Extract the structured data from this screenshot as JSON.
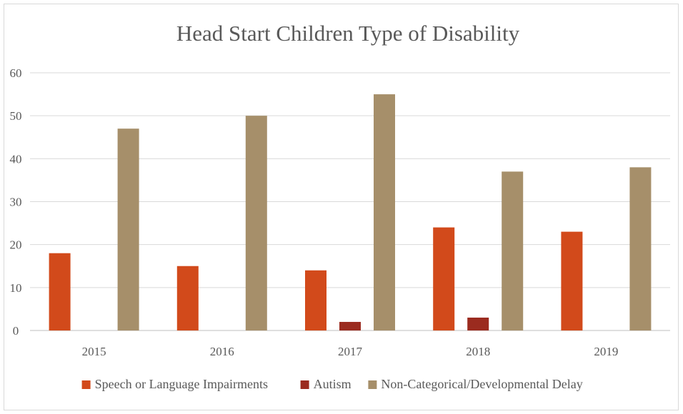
{
  "chart_data": {
    "type": "bar",
    "title": "Head Start Children Type of Disability",
    "categories": [
      "2015",
      "2016",
      "2017",
      "2018",
      "2019"
    ],
    "series": [
      {
        "name": "Speech or Language Impairments",
        "color": "#d24a1b",
        "values": [
          18,
          15,
          14,
          24,
          23
        ]
      },
      {
        "name": "Autism",
        "color": "#9b2b1f",
        "values": [
          0,
          0,
          2,
          3,
          0
        ]
      },
      {
        "name": "Non-Categorical/Developmental Delay",
        "color": "#a68f6a",
        "values": [
          47,
          50,
          55,
          37,
          38
        ]
      }
    ],
    "ylim": [
      0,
      60
    ],
    "yticks": [
      0,
      10,
      20,
      30,
      40,
      50,
      60
    ],
    "grid": true,
    "legend": "bottom"
  }
}
